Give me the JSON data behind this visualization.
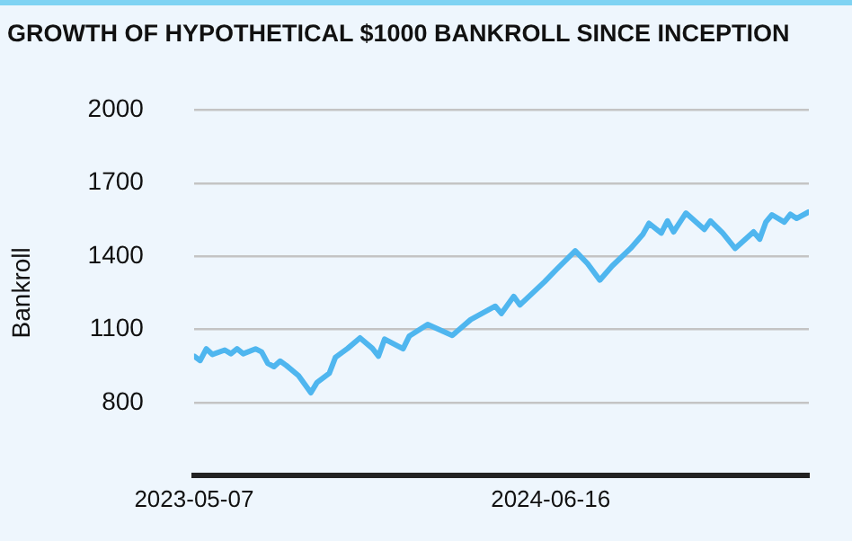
{
  "chart_data": {
    "type": "line",
    "title": "GROWTH OF HYPOTHETICAL $1000 BANKROLL SINCE INCEPTION",
    "ylabel": "Bankroll",
    "x": [
      "2023-05-07",
      "2023-05-14",
      "2023-05-21",
      "2023-05-28",
      "2023-06-11",
      "2023-06-18",
      "2023-06-25",
      "2023-07-02",
      "2023-07-16",
      "2023-07-23",
      "2023-07-30",
      "2023-08-06",
      "2023-08-13",
      "2023-08-20",
      "2023-09-03",
      "2023-09-17",
      "2023-09-24",
      "2023-10-08",
      "2023-10-15",
      "2023-10-29",
      "2023-11-12",
      "2023-11-26",
      "2023-12-03",
      "2023-12-10",
      "2023-12-31",
      "2024-01-07",
      "2024-01-28",
      "2024-02-25",
      "2024-03-17",
      "2024-04-14",
      "2024-04-21",
      "2024-05-05",
      "2024-05-12",
      "2024-06-09",
      "2024-06-23",
      "2024-07-14",
      "2024-07-28",
      "2024-08-11",
      "2024-08-25",
      "2024-09-15",
      "2024-09-29",
      "2024-10-06",
      "2024-10-20",
      "2024-10-27",
      "2024-11-03",
      "2024-11-17",
      "2024-12-08",
      "2024-12-15",
      "2024-12-29",
      "2025-01-12",
      "2025-02-02",
      "2025-02-09",
      "2025-02-16",
      "2025-02-23",
      "2025-03-09",
      "2025-03-16",
      "2025-03-23",
      "2025-04-06"
    ],
    "series": [
      {
        "color": "#4fb6ef",
        "values": [
          990,
          972,
          1020,
          997,
          1015,
          1000,
          1020,
          1000,
          1020,
          1007,
          960,
          947,
          970,
          952,
          910,
          840,
          882,
          920,
          985,
          1022,
          1065,
          1022,
          990,
          1060,
          1020,
          1072,
          1120,
          1075,
          1140,
          1195,
          1165,
          1235,
          1200,
          1295,
          1347,
          1422,
          1370,
          1302,
          1360,
          1432,
          1490,
          1535,
          1495,
          1545,
          1500,
          1577,
          1510,
          1545,
          1495,
          1432,
          1500,
          1470,
          1540,
          1570,
          1540,
          1572,
          1555,
          1582
        ]
      }
    ],
    "xlim": [
      "2023-05-07",
      "2025-04-06"
    ],
    "xticks": [
      {
        "value": "2023-05-07",
        "label": "2023-05-07"
      },
      {
        "value": "2024-06-16",
        "label": "2024-06-16"
      }
    ],
    "ylim": [
      500,
      2000
    ],
    "yticks": [
      800,
      1100,
      1400,
      1700,
      2000
    ],
    "grid": "y",
    "legend": false,
    "marker": "none",
    "line_style": "solid"
  }
}
